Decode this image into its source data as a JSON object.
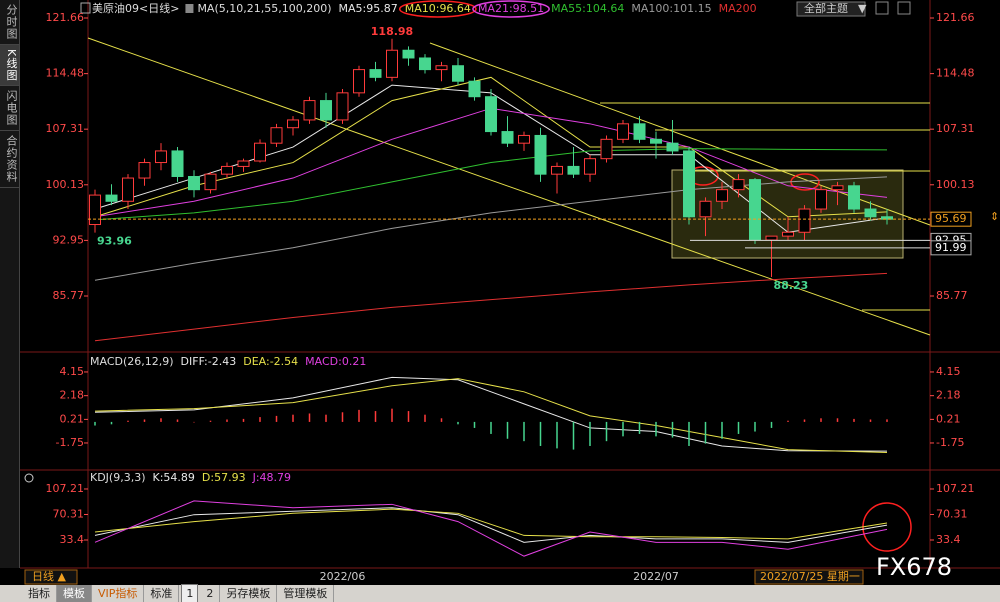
{
  "ui": {
    "sidebar": [
      "分时图",
      "K线图",
      "闪电图",
      "合约资料"
    ],
    "instrument": "美原油09<日线>",
    "theme": "全部主题",
    "period": "日线 ▲",
    "date_status": "2022/07/25 星期一",
    "toolbar": [
      "指标",
      "模板",
      "VIP指标",
      "标准",
      "1",
      "2",
      "另存模板",
      "管理模板"
    ],
    "watermark": "FX678"
  },
  "chart_data": [
    {
      "type": "candlestick",
      "legend_title": "MA(5,10,21,55,100,200)",
      "categories": [
        null,
        null,
        null,
        null,
        null,
        null,
        null,
        null,
        null,
        null,
        null,
        null,
        null,
        null,
        null,
        "2022/06",
        null,
        null,
        null,
        null,
        null,
        null,
        null,
        null,
        null,
        null,
        null,
        null,
        null,
        null,
        null,
        null,
        null,
        null,
        "2022/07",
        null,
        null,
        null,
        null,
        null,
        null,
        null,
        null,
        null,
        null,
        null,
        null,
        null,
        null
      ],
      "ohlc": [
        [
          95.0,
          99.5,
          93.96,
          98.8
        ],
        [
          98.8,
          100.2,
          97.5,
          98.0
        ],
        [
          98.0,
          101.5,
          97.0,
          101.0
        ],
        [
          101.0,
          103.5,
          100.0,
          103.0
        ],
        [
          103.0,
          105.5,
          102.0,
          104.5
        ],
        [
          104.5,
          105.0,
          100.5,
          101.2
        ],
        [
          101.2,
          102.0,
          98.5,
          99.5
        ],
        [
          99.5,
          101.8,
          99.0,
          101.5
        ],
        [
          101.5,
          103.0,
          101.0,
          102.5
        ],
        [
          102.5,
          103.5,
          101.8,
          103.2
        ],
        [
          103.2,
          106.0,
          103.0,
          105.5
        ],
        [
          105.5,
          108.0,
          105.0,
          107.5
        ],
        [
          107.5,
          109.0,
          106.5,
          108.5
        ],
        [
          108.5,
          111.5,
          108.0,
          111.0
        ],
        [
          111.0,
          112.0,
          107.5,
          108.5
        ],
        [
          108.5,
          112.5,
          108.0,
          112.0
        ],
        [
          112.0,
          115.5,
          111.5,
          115.0
        ],
        [
          115.0,
          116.0,
          113.5,
          114.0
        ],
        [
          114.0,
          118.98,
          113.5,
          117.5
        ],
        [
          117.5,
          118.0,
          115.5,
          116.5
        ],
        [
          116.5,
          117.0,
          114.5,
          115.0
        ],
        [
          115.0,
          116.0,
          113.5,
          115.5
        ],
        [
          115.5,
          116.5,
          113.0,
          113.5
        ],
        [
          113.5,
          114.0,
          111.0,
          111.5
        ],
        [
          111.5,
          112.5,
          106.5,
          107.0
        ],
        [
          107.0,
          109.0,
          105.0,
          105.5
        ],
        [
          105.5,
          107.0,
          104.5,
          106.5
        ],
        [
          106.5,
          107.5,
          100.5,
          101.5
        ],
        [
          101.5,
          103.0,
          99.0,
          102.5
        ],
        [
          102.5,
          105.0,
          101.0,
          101.5
        ],
        [
          101.5,
          104.0,
          100.5,
          103.5
        ],
        [
          103.5,
          106.5,
          103.0,
          106.0
        ],
        [
          106.0,
          108.5,
          105.5,
          108.0
        ],
        [
          108.0,
          109.0,
          105.5,
          106.0
        ],
        [
          106.0,
          107.0,
          103.5,
          105.5
        ],
        [
          105.5,
          108.5,
          104.0,
          104.5
        ],
        [
          104.5,
          105.0,
          95.0,
          96.0
        ],
        [
          96.0,
          98.5,
          93.5,
          98.0
        ],
        [
          98.0,
          100.5,
          97.0,
          99.5
        ],
        [
          99.5,
          101.5,
          98.5,
          100.8
        ],
        [
          100.8,
          101.0,
          92.5,
          93.0
        ],
        [
          93.0,
          93.5,
          88.23,
          93.5
        ],
        [
          93.5,
          96.0,
          93.0,
          94.0
        ],
        [
          94.0,
          97.5,
          93.0,
          97.0
        ],
        [
          97.0,
          100.0,
          96.5,
          99.5
        ],
        [
          99.5,
          100.5,
          97.5,
          100.0
        ],
        [
          100.0,
          100.5,
          96.5,
          97.0
        ],
        [
          97.0,
          98.0,
          95.5,
          96.0
        ],
        [
          96.0,
          97.0,
          95.0,
          95.69
        ]
      ],
      "up_color": "#ff3b3b",
      "down_color": "#47d68f",
      "ylim": [
        78.8,
        123.34
      ],
      "yticks": [
        121.66,
        114.48,
        107.31,
        100.13,
        92.95,
        85.77
      ],
      "series": [
        {
          "name": "MA5:95.87",
          "color": "#e8e8e8",
          "x": [
            0,
            6,
            12,
            18,
            24,
            30,
            36,
            42,
            48
          ],
          "values": [
            97,
            101,
            105,
            113,
            112,
            104,
            104,
            94,
            95.87
          ]
        },
        {
          "name": "MA10:96.64",
          "color": "#e6e04a",
          "x": [
            0,
            6,
            12,
            18,
            24,
            30,
            36,
            42,
            48
          ],
          "values": [
            96,
            100,
            103,
            111,
            114,
            105,
            105,
            96,
            96.64
          ]
        },
        {
          "name": "MA21:98.51",
          "color": "#e040e0",
          "x": [
            0,
            6,
            12,
            18,
            24,
            30,
            36,
            42,
            48
          ],
          "values": [
            96,
            98,
            101,
            106,
            110,
            108,
            105,
            100,
            98.51
          ]
        },
        {
          "name": "MA55:104.64",
          "color": "#30c030",
          "x": [
            0,
            6,
            12,
            18,
            24,
            30,
            36,
            42,
            48
          ],
          "values": [
            95.6,
            96.5,
            98,
            100.5,
            103,
            104.5,
            104.8,
            104.7,
            104.64
          ]
        },
        {
          "name": "MA100:101.15",
          "color": "#9a9a9a",
          "x": [
            0,
            6,
            12,
            18,
            24,
            30,
            36,
            42,
            48
          ],
          "values": [
            87.8,
            90,
            92,
            94.5,
            96.5,
            98,
            99.5,
            100.5,
            101.15
          ]
        },
        {
          "name": "MA200",
          "color": "#e03030",
          "x": [
            0,
            6,
            12,
            18,
            24,
            30,
            36,
            42,
            48
          ],
          "values": [
            80,
            81.5,
            83,
            84.3,
            85.3,
            86.3,
            87.2,
            88,
            88.7
          ]
        }
      ],
      "annotations": [
        {
          "index": 18,
          "value": 118.98
        },
        {
          "index": 0,
          "value": 93.96
        },
        {
          "index": 41,
          "value": 88.23
        }
      ],
      "price_lines": [
        95.69,
        92.95,
        91.99
      ]
    },
    {
      "type": "line",
      "title": "MACD(26,12,9)",
      "ylim": [
        -3.83,
        5.31
      ],
      "yticks": [
        4.15,
        2.18,
        0.21,
        -1.75
      ],
      "series": [
        {
          "name": "DIFF:-2.43",
          "color": "#e8e8e8",
          "x": [
            0,
            6,
            12,
            18,
            22,
            26,
            30,
            34,
            38,
            42,
            48
          ],
          "values": [
            0.8,
            1.0,
            2.0,
            3.7,
            3.5,
            1.5,
            -0.5,
            -0.8,
            -2.0,
            -2.4,
            -2.43
          ]
        },
        {
          "name": "DEA:-2.54",
          "color": "#e6e04a",
          "x": [
            0,
            6,
            12,
            18,
            22,
            26,
            30,
            34,
            38,
            42,
            48
          ],
          "values": [
            0.9,
            1.1,
            1.6,
            3.0,
            3.6,
            2.5,
            0.5,
            -0.3,
            -1.3,
            -2.3,
            -2.54
          ]
        },
        {
          "name": "MACD:0.21",
          "color": "#e040e0",
          "type": "bar",
          "up_color": "#ff3b3b",
          "down_color": "#47d68f",
          "values": [
            -0.3,
            -0.2,
            0.1,
            0.2,
            0.3,
            0.2,
            0.0,
            0.1,
            0.2,
            0.25,
            0.4,
            0.5,
            0.6,
            0.7,
            0.6,
            0.8,
            1.0,
            0.9,
            1.1,
            0.9,
            0.6,
            0.3,
            -0.2,
            -0.5,
            -1.0,
            -1.4,
            -1.6,
            -2.0,
            -2.2,
            -2.3,
            -2.0,
            -1.6,
            -1.2,
            -1.0,
            -1.2,
            -1.3,
            -2.0,
            -1.8,
            -1.4,
            -1.0,
            -0.8,
            -0.5,
            0.1,
            0.2,
            0.3,
            0.3,
            0.25,
            0.2,
            0.21
          ]
        }
      ]
    },
    {
      "type": "line",
      "title": "KDJ(9,3,3)",
      "ylim": [
        -2.8,
        123.1
      ],
      "yticks": [
        107.21,
        70.31,
        33.4
      ],
      "series": [
        {
          "name": "K:54.89",
          "color": "#e8e8e8",
          "x": [
            0,
            6,
            12,
            18,
            22,
            26,
            30,
            34,
            38,
            42,
            48
          ],
          "values": [
            40,
            70,
            75,
            80,
            70,
            30,
            40,
            35,
            35,
            30,
            54.89
          ]
        },
        {
          "name": "D:57.93",
          "color": "#e6e04a",
          "x": [
            0,
            6,
            12,
            18,
            22,
            26,
            30,
            34,
            38,
            42,
            48
          ],
          "values": [
            45,
            60,
            72,
            78,
            72,
            40,
            38,
            38,
            37,
            35,
            57.93
          ]
        },
        {
          "name": "J:48.79",
          "color": "#e040e0",
          "x": [
            0,
            6,
            12,
            18,
            22,
            26,
            30,
            34,
            38,
            42,
            48
          ],
          "values": [
            30,
            90,
            80,
            85,
            60,
            10,
            45,
            30,
            30,
            20,
            48.79
          ]
        }
      ]
    }
  ]
}
